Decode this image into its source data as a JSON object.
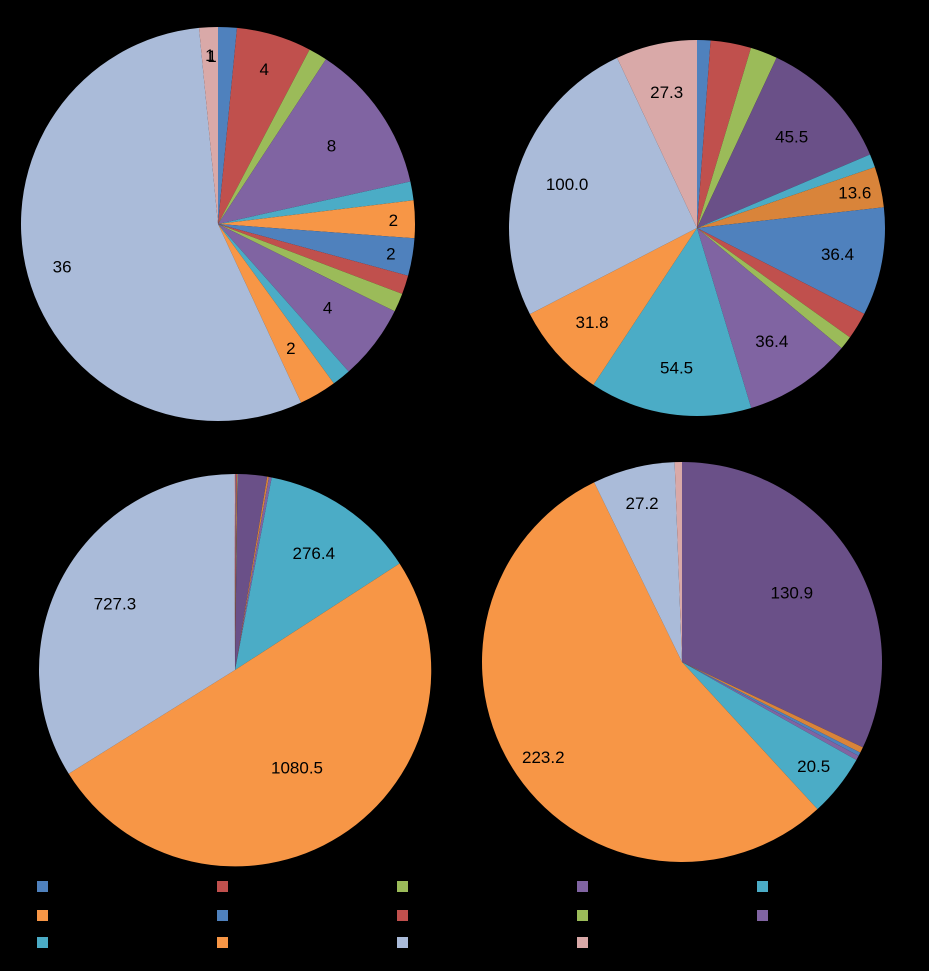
{
  "chart_data": [
    {
      "type": "pie",
      "colors": [
        "#4F81BD",
        "#C0504D",
        "#9BBB59",
        "#8064A2",
        "#4BACC6",
        "#F79646",
        "#4F81BD",
        "#C0504D",
        "#9BBB59",
        "#8064A2",
        "#4BACC6",
        "#F79646",
        "#AABBD9",
        "#D9A9A8"
      ],
      "values": [
        1,
        4,
        1,
        8,
        1,
        2,
        2,
        1,
        1,
        4,
        1,
        2,
        36,
        1
      ],
      "labels": [
        "",
        "4",
        "",
        "8",
        "",
        "2",
        "2",
        "",
        "",
        "4",
        "",
        "2",
        "36",
        "1"
      ],
      "extra_labels": [
        "1"
      ]
    },
    {
      "type": "pie",
      "colors": [
        "#4F81BD",
        "#C0504D",
        "#9BBB59",
        "#6A5088",
        "#4BACC6",
        "#D9843A",
        "#4F81BD",
        "#C0504D",
        "#9BBB59",
        "#8064A2",
        "#4BACC6",
        "#F79646",
        "#AABBD9",
        "#D9A9A8"
      ],
      "values": [
        4.5,
        13.6,
        9.1,
        45.5,
        4.5,
        13.6,
        36.4,
        9.1,
        4.5,
        36.4,
        54.5,
        31.8,
        100.0,
        27.3
      ],
      "labels": [
        "",
        "",
        "",
        "45.5",
        "",
        "13.6",
        "36.4",
        "",
        "",
        "36.4",
        "54.5",
        "31.8",
        "100.0",
        "27.3"
      ]
    },
    {
      "type": "pie",
      "colors": [
        "#4F81BD",
        "#C0504D",
        "#9BBB59",
        "#6A5088",
        "#D9843A",
        "#8064A2",
        "#4BACC6",
        "#F79646",
        "#AABBD9",
        "#D9A9A8"
      ],
      "values": [
        1.0,
        2.5,
        1.0,
        52.0,
        3.0,
        5.0,
        276.4,
        1080.5,
        727.3,
        1.0
      ],
      "labels": [
        "",
        "",
        "",
        "",
        "",
        "",
        "276.4",
        "1080.5",
        "727.3",
        ""
      ]
    },
    {
      "type": "pie",
      "colors": [
        "#6A5088",
        "#D9843A",
        "#4F81BD",
        "#8064A2",
        "#4BACC6",
        "#F79646",
        "#AABBD9",
        "#D9A9A8"
      ],
      "values": [
        130.9,
        1.9,
        1.2,
        1.5,
        20.5,
        223.2,
        27.2,
        2.4
      ],
      "labels": [
        "130.9",
        "",
        "",
        "",
        "20.5",
        "223.2",
        "27.2",
        ""
      ]
    }
  ],
  "legend": {
    "swatches": [
      "#4F81BD",
      "#C0504D",
      "#9BBB59",
      "#8064A2",
      "#4BACC6",
      "#F79646",
      "#4F81BD",
      "#C0504D",
      "#9BBB59",
      "#8064A2",
      "#4BACC6",
      "#F79646",
      "#AABBD9",
      "#D9A9A8"
    ]
  }
}
